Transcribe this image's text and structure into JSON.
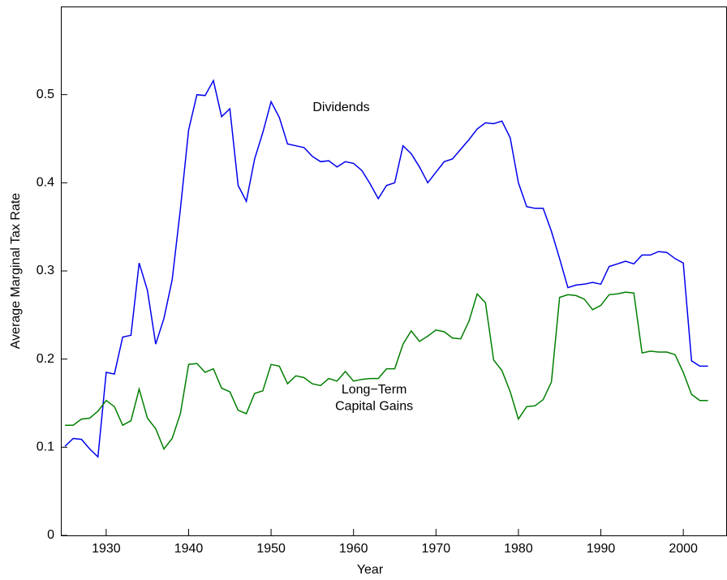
{
  "chart_data": {
    "type": "line",
    "xlabel": "Year",
    "ylabel": "Average Marginal Tax Rate",
    "annotations": [
      {
        "text": "Dividends",
        "x": 1958.5,
        "y": 0.485
      },
      {
        "text": "Long−Term",
        "x": 1962.5,
        "y": 0.165
      },
      {
        "text": "Capital Gains",
        "x": 1962.5,
        "y": 0.146
      }
    ],
    "x": [
      1925,
      1926,
      1927,
      1928,
      1929,
      1930,
      1931,
      1932,
      1933,
      1934,
      1935,
      1936,
      1937,
      1938,
      1939,
      1940,
      1941,
      1942,
      1943,
      1944,
      1945,
      1946,
      1947,
      1948,
      1949,
      1950,
      1951,
      1952,
      1953,
      1954,
      1955,
      1956,
      1957,
      1958,
      1959,
      1960,
      1961,
      1962,
      1963,
      1964,
      1965,
      1966,
      1967,
      1968,
      1969,
      1970,
      1971,
      1972,
      1973,
      1974,
      1975,
      1976,
      1977,
      1978,
      1979,
      1980,
      1981,
      1982,
      1983,
      1984,
      1985,
      1986,
      1987,
      1988,
      1989,
      1990,
      1991,
      1992,
      1993,
      1994,
      1995,
      1996,
      1997,
      1998,
      1999,
      2000,
      2001,
      2002,
      2003
    ],
    "series": [
      {
        "name": "Dividends",
        "color": "#0000ee",
        "values": [
          0.101,
          0.11,
          0.109,
          0.098,
          0.089,
          0.185,
          0.183,
          0.225,
          0.227,
          0.309,
          0.278,
          0.217,
          0.246,
          0.29,
          0.37,
          0.46,
          0.5,
          0.499,
          0.516,
          0.475,
          0.484,
          0.397,
          0.379,
          0.427,
          0.457,
          0.492,
          0.474,
          0.444,
          0.442,
          0.44,
          0.43,
          0.424,
          0.425,
          0.418,
          0.424,
          0.422,
          0.414,
          0.399,
          0.382,
          0.397,
          0.4,
          0.442,
          0.433,
          0.418,
          0.4,
          0.412,
          0.424,
          0.427,
          0.438,
          0.449,
          0.461,
          0.468,
          0.467,
          0.47,
          0.451,
          0.4,
          0.373,
          0.371,
          0.371,
          0.345,
          0.314,
          0.281,
          0.284,
          0.285,
          0.287,
          0.285,
          0.305,
          0.308,
          0.311,
          0.308,
          0.318,
          0.318,
          0.322,
          0.321,
          0.314,
          0.309,
          0.198,
          0.192,
          0.192
        ]
      },
      {
        "name": "Long−Term Capital Gains",
        "color": "#007f00",
        "values": [
          0.125,
          0.125,
          0.132,
          0.133,
          0.141,
          0.153,
          0.146,
          0.125,
          0.13,
          0.166,
          0.133,
          0.121,
          0.098,
          0.11,
          0.138,
          0.194,
          0.195,
          0.185,
          0.189,
          0.167,
          0.163,
          0.142,
          0.138,
          0.161,
          0.164,
          0.194,
          0.192,
          0.172,
          0.181,
          0.179,
          0.172,
          0.17,
          0.178,
          0.175,
          0.186,
          0.175,
          0.177,
          0.178,
          0.178,
          0.189,
          0.189,
          0.217,
          0.232,
          0.22,
          0.226,
          0.233,
          0.231,
          0.224,
          0.223,
          0.243,
          0.274,
          0.264,
          0.199,
          0.187,
          0.163,
          0.132,
          0.146,
          0.147,
          0.154,
          0.174,
          0.27,
          0.273,
          0.272,
          0.268,
          0.256,
          0.261,
          0.273,
          0.274,
          0.276,
          0.275,
          0.207,
          0.209,
          0.208,
          0.208,
          0.205,
          0.185,
          0.16,
          0.153,
          0.153
        ]
      }
    ],
    "xlim": [
      1924.5,
      2005.3
    ],
    "xticks": [
      1930,
      1940,
      1950,
      1960,
      1970,
      1980,
      1990,
      2000
    ],
    "ylim": [
      0,
      0.6
    ],
    "yticks": [
      0,
      0.1,
      0.2,
      0.3,
      0.4,
      0.5
    ]
  }
}
